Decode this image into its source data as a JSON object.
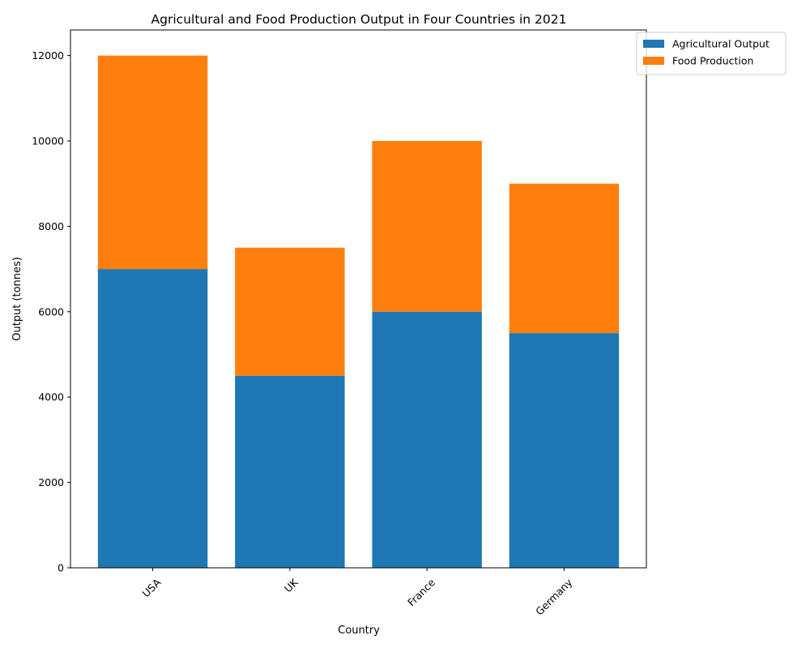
{
  "chart_data": {
    "type": "bar",
    "stacked": true,
    "title": "Agricultural and Food Production Output in Four Countries in 2021",
    "xlabel": "Country",
    "ylabel": "Output (tonnes)",
    "categories": [
      "USA",
      "UK",
      "France",
      "Germany"
    ],
    "series": [
      {
        "name": "Agricultural Output",
        "values": [
          7000,
          4500,
          6000,
          5500
        ],
        "color": "#1f77b4"
      },
      {
        "name": "Food Production",
        "values": [
          5000,
          3000,
          4000,
          3500
        ],
        "color": "#ff7f0e"
      }
    ],
    "ylim": [
      0,
      12600
    ],
    "yticks": [
      0,
      2000,
      4000,
      6000,
      8000,
      10000,
      12000
    ],
    "x_tick_rotation": 45,
    "grid": false,
    "legend_position": "top-right, outside plot area"
  }
}
